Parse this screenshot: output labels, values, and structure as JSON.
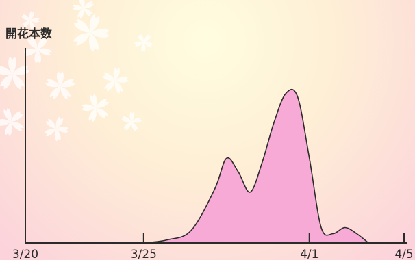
{
  "chart_data": {
    "type": "area",
    "title": "",
    "xlabel": "",
    "ylabel": "開花本数",
    "x_ticks": [
      "3/20",
      "3/25",
      "4/1",
      "4/5"
    ],
    "x_domain": [
      "3/20",
      "4/5"
    ],
    "ylim": [
      0,
      100
    ],
    "y_ticks_shown": false,
    "grid": false,
    "legend": "none",
    "series": [
      {
        "x": [
          "3/25",
          "3/26",
          "3/27",
          "3/28",
          "3/28 12:00",
          "3/29",
          "3/29 12:00",
          "3/30",
          "3/30 12:00",
          "3/31",
          "3/31 12:00",
          "4/1",
          "4/1 12:00",
          "4/2",
          "4/2 12:00",
          "4/3",
          "4/3 12:00"
        ],
        "y": [
          0,
          2,
          8,
          35,
          55,
          46,
          33,
          52,
          78,
          97,
          95,
          55,
          10,
          6,
          10,
          6,
          0
        ],
        "fill": "#F7AAD6",
        "stroke": "#2B2B2B"
      }
    ]
  },
  "colors": {
    "background_center": "#FFFDE0",
    "background_edge": "#FCD3DB",
    "blossom": "#FFFFFF",
    "axis": "#2B2B2B",
    "area_fill": "#F7AAD6"
  }
}
